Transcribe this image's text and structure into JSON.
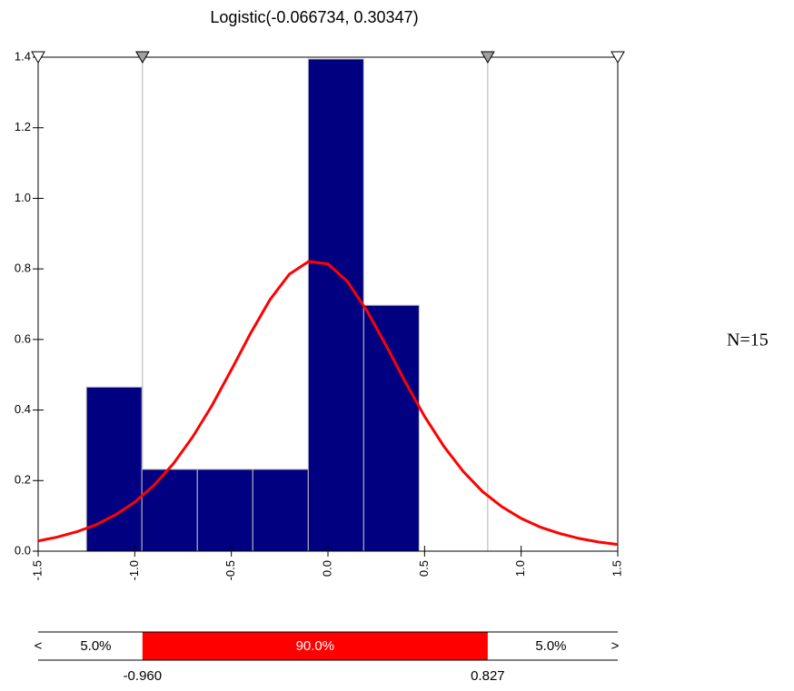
{
  "chart_data": {
    "type": "histogram",
    "title": "Logistic(-0.066734, 0.30347)",
    "bins": [
      -1.25,
      -0.963,
      -0.676,
      -0.389,
      -0.102,
      0.185,
      0.472
    ],
    "values": [
      0.465,
      0.232,
      0.232,
      0.232,
      1.395,
      0.697
    ],
    "color": "#000080",
    "curve": {
      "color": "#ff0000",
      "x": [
        -1.5,
        -1.4,
        -1.3,
        -1.2,
        -1.1,
        -1.0,
        -0.9,
        -0.8,
        -0.7,
        -0.6,
        -0.5,
        -0.4,
        -0.3,
        -0.2,
        -0.1,
        0.0,
        0.1,
        0.2,
        0.3,
        0.4,
        0.5,
        0.6,
        0.7,
        0.8,
        0.9,
        1.0,
        1.1,
        1.2,
        1.3,
        1.4,
        1.5
      ],
      "values": [
        0.029,
        0.04,
        0.055,
        0.075,
        0.103,
        0.139,
        0.187,
        0.248,
        0.324,
        0.413,
        0.514,
        0.618,
        0.713,
        0.785,
        0.821,
        0.814,
        0.765,
        0.683,
        0.584,
        0.48,
        0.382,
        0.297,
        0.226,
        0.169,
        0.126,
        0.093,
        0.068,
        0.05,
        0.036,
        0.026,
        0.019
      ]
    },
    "xlim": [
      -1.5,
      1.5
    ],
    "xticks": [
      -1.5,
      {
        "value": -1,
        "label": "-1.0"
      },
      -0.5,
      {
        "value": 0,
        "label": "0.0"
      },
      0.5,
      {
        "value": 1,
        "label": "1.0"
      },
      1.5
    ],
    "ylim": [
      0,
      1.4
    ],
    "yticks": [
      {
        "value": 0,
        "label": "0.0"
      },
      0.2,
      0.4,
      0.6,
      0.8,
      {
        "value": 1,
        "label": "1.0"
      },
      1.2,
      1.4
    ],
    "delimiters": [
      {
        "value": -0.96,
        "label": "-0.960"
      },
      {
        "value": 0.827,
        "label": "0.827"
      }
    ],
    "percentages": [
      {
        "value": 5,
        "label": "5.0%"
      },
      {
        "value": 90,
        "label": "90.0%"
      },
      {
        "value": 5,
        "label": "5.0%"
      }
    ],
    "band_color": "#ff0000",
    "left_arrow": "<",
    "right_arrow": ">",
    "annotation": "N=15"
  }
}
